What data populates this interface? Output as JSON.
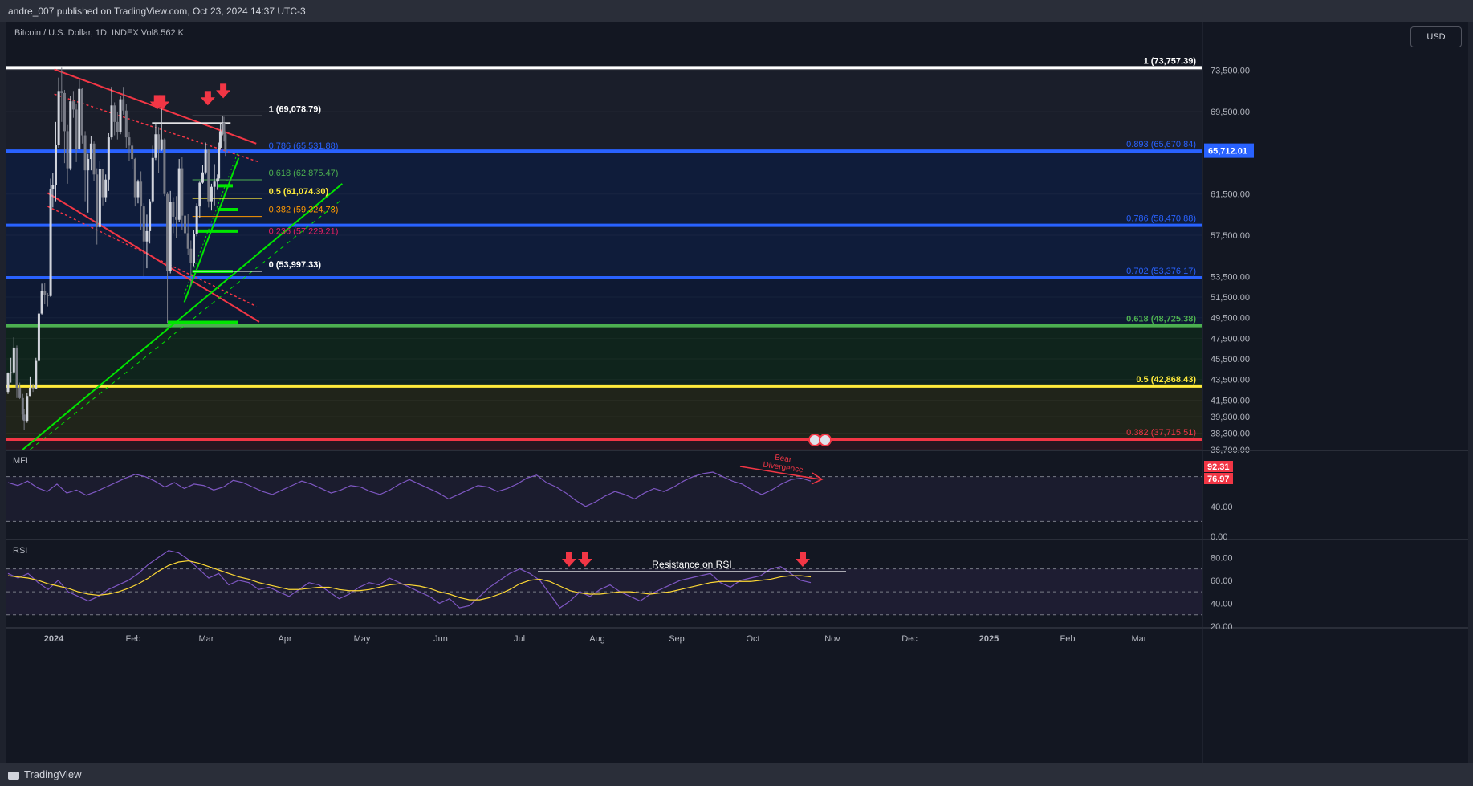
{
  "header": {
    "published": "andre_007 published on TradingView.com, Oct 23, 2024 14:37 UTC-3",
    "symbol": "Bitcoin / U.S. Dollar, 1D, INDEX",
    "vol_label": "Vol",
    "vol_value": "8.562 K",
    "currency": "USD"
  },
  "footer": {
    "brand": "TradingView"
  },
  "colors": {
    "up": "#d1d4dc",
    "down": "#787b86",
    "fib_blue": "#2962ff",
    "fib_green": "#4caf50",
    "fib_yellow": "#ffeb3b",
    "fib_red": "#f23645",
    "accent_green": "#00e600"
  },
  "chart_data": [
    {
      "type": "candlestick",
      "title": "Bitcoin / U.S. Dollar, 1D, INDEX",
      "ylim": [
        36700,
        75500
      ],
      "price_axis": [
        "73,500.00",
        "69,500.00",
        "61,500.00",
        "57,500.00",
        "53,500.00",
        "51,500.00",
        "49,500.00",
        "47,500.00",
        "45,500.00",
        "43,500.00",
        "41,500.00",
        "39,900.00",
        "38,300.00",
        "36,700.00"
      ],
      "last_price": "65,712.01",
      "x_ticks": [
        "2024",
        "Feb",
        "Mar",
        "Apr",
        "May",
        "Jun",
        "Jul",
        "Aug",
        "Sep",
        "Oct",
        "Nov",
        "Dec",
        "2025",
        "Feb",
        "Mar"
      ],
      "series": [
        {
          "name": "BTCUSD",
          "points": [
            [
              "2024-01-01",
              42300,
              44200,
              42100,
              44100
            ],
            [
              "2024-01-05",
              44100,
              45600,
              43200,
              44200
            ],
            [
              "2024-01-09",
              44200,
              47600,
              44000,
              46600
            ],
            [
              "2024-01-13",
              46600,
              46800,
              41700,
              42700
            ],
            [
              "2024-01-17",
              42700,
              43200,
              41600,
              41700
            ],
            [
              "2024-01-21",
              41700,
              42100,
              39600,
              40100
            ],
            [
              "2024-01-23",
              40100,
              40600,
              38600,
              39500
            ],
            [
              "2024-01-27",
              39500,
              42200,
              39300,
              41900
            ],
            [
              "2024-01-31",
              41900,
              43800,
              41900,
              42700
            ],
            [
              "2024-02-04",
              42700,
              43100,
              42300,
              42600
            ],
            [
              "2024-02-08",
              42600,
              45600,
              42600,
              45300
            ],
            [
              "2024-02-12",
              45300,
              50200,
              45200,
              49900
            ],
            [
              "2024-02-16",
              49900,
              52800,
              49800,
              52100
            ],
            [
              "2024-02-20",
              52100,
              52900,
              50800,
              51700
            ],
            [
              "2024-02-24",
              51700,
              51900,
              50600,
              51600
            ],
            [
              "2024-02-28",
              51600,
              63000,
              51500,
              62000
            ],
            [
              "2024-03-02",
              62000,
              63500,
              60200,
              62400
            ],
            [
              "2024-03-06",
              62400,
              68500,
              60800,
              66300
            ],
            [
              "2024-03-10",
              66300,
              72800,
              66000,
              71500
            ],
            [
              "2024-03-14",
              71500,
              73757,
              68500,
              71300
            ],
            [
              "2024-03-18",
              71300,
              71600,
              64500,
              67600
            ],
            [
              "2024-03-22",
              67600,
              68200,
              62500,
              64000
            ],
            [
              "2024-03-26",
              64000,
              71000,
              63800,
              70500
            ],
            [
              "2024-03-30",
              70500,
              71500,
              68900,
              69700
            ],
            [
              "2024-04-03",
              69700,
              70200,
              64600,
              65900
            ],
            [
              "2024-04-07",
              65900,
              72600,
              65800,
              71700
            ],
            [
              "2024-04-11",
              71700,
              71800,
              66400,
              67200
            ],
            [
              "2024-04-15",
              67200,
              67600,
              60800,
              63800
            ],
            [
              "2024-04-19",
              63800,
              65400,
              59700,
              64900
            ],
            [
              "2024-04-23",
              64900,
              67100,
              63800,
              66400
            ],
            [
              "2024-04-27",
              66400,
              66600,
              62800,
              63400
            ],
            [
              "2024-05-01",
              63400,
              64000,
              56600,
              58300
            ],
            [
              "2024-05-05",
              58300,
              64700,
              58200,
              63900
            ],
            [
              "2024-05-09",
              63900,
              63900,
              60400,
              61200
            ],
            [
              "2024-05-13",
              61200,
              63400,
              60700,
              62900
            ],
            [
              "2024-05-17",
              62900,
              67400,
              61800,
              67000
            ],
            [
              "2024-05-21",
              67000,
              71900,
              66800,
              70100
            ],
            [
              "2024-05-25",
              70100,
              70400,
              67200,
              68500
            ],
            [
              "2024-05-29",
              68500,
              69500,
              66800,
              67500
            ],
            [
              "2024-06-02",
              67500,
              71000,
              67300,
              70700
            ],
            [
              "2024-06-06",
              70700,
              71900,
              69200,
              69600
            ],
            [
              "2024-06-10",
              69600,
              70200,
              66000,
              67000
            ],
            [
              "2024-06-14",
              67000,
              67500,
              64700,
              66200
            ],
            [
              "2024-06-18",
              66200,
              66500,
              63900,
              64900
            ],
            [
              "2024-06-22",
              64900,
              65000,
              60300,
              61200
            ],
            [
              "2024-06-26",
              61200,
              62900,
              60600,
              62700
            ],
            [
              "2024-06-30",
              62700,
              63700,
              58000,
              60300
            ],
            [
              "2024-07-04",
              60300,
              60600,
              53500,
              56900
            ],
            [
              "2024-07-08",
              56900,
              59500,
              54300,
              57900
            ],
            [
              "2024-07-12",
              57900,
              61000,
              56700,
              60800
            ],
            [
              "2024-07-16",
              60800,
              66200,
              60600,
              65000
            ],
            [
              "2024-07-20",
              65000,
              68400,
              64800,
              67300
            ],
            [
              "2024-07-24",
              67300,
              68000,
              63500,
              65800
            ],
            [
              "2024-07-28",
              65800,
              69900,
              65700,
              66800
            ],
            [
              "2024-08-01",
              66800,
              66900,
              61300,
              61500
            ],
            [
              "2024-08-05",
              61500,
              61700,
              49000,
              54000
            ],
            [
              "2024-08-09",
              54000,
              61800,
              53800,
              60700
            ],
            [
              "2024-08-13",
              60700,
              61200,
              57700,
              59300
            ],
            [
              "2024-08-17",
              59300,
              61300,
              57200,
              59000
            ],
            [
              "2024-08-21",
              59000,
              64900,
              58800,
              64000
            ],
            [
              "2024-08-25",
              64000,
              65100,
              58000,
              59400
            ],
            [
              "2024-08-29",
              59400,
              61000,
              57200,
              57700
            ],
            [
              "2024-09-02",
              57700,
              59600,
              55600,
              56200
            ],
            [
              "2024-09-06",
              56200,
              57000,
              52600,
              54800
            ],
            [
              "2024-09-10",
              54800,
              58000,
              54500,
              57600
            ],
            [
              "2024-09-14",
              57600,
              60600,
              57400,
              60300
            ],
            [
              "2024-09-18",
              60300,
              62700,
              59200,
              62600
            ],
            [
              "2024-09-22",
              62600,
              64300,
              62500,
              63600
            ],
            [
              "2024-09-26",
              63600,
              66500,
              63400,
              65800
            ],
            [
              "2024-09-30",
              65800,
              65900,
              60200,
              60800
            ],
            [
              "2024-10-04",
              60800,
              62500,
              59900,
              62200
            ],
            [
              "2024-10-08",
              62200,
              64400,
              60400,
              62700
            ],
            [
              "2024-10-12",
              62700,
              63400,
              61900,
              63000
            ],
            [
              "2024-10-14",
              63000,
              66500,
              62800,
              66000
            ],
            [
              "2024-10-16",
              66000,
              68400,
              65800,
              67600
            ],
            [
              "2024-10-19",
              67600,
              69078,
              67200,
              68400
            ],
            [
              "2024-10-21",
              68400,
              69000,
              66600,
              67300
            ],
            [
              "2024-10-23",
              67300,
              67500,
              65200,
              65712
            ]
          ]
        }
      ],
      "fib_retracement_1": [
        {
          "label": "1 (73,757.39)",
          "color": "#ffffff"
        },
        {
          "label": "0.893 (65,670.84)",
          "color": "#2962ff"
        },
        {
          "label": "0.786 (58,470.88)",
          "color": "#2962ff"
        },
        {
          "label": "0.702 (53,376.17)",
          "color": "#2962ff"
        },
        {
          "label": "0.618 (48,725.38)",
          "color": "#4caf50"
        },
        {
          "label": "0.5 (42,868.43)",
          "color": "#ffeb3b"
        },
        {
          "label": "0.382 (37,715.51)",
          "color": "#f23645"
        }
      ],
      "fib_retracement_2": [
        {
          "label": "1 (69,078.79)",
          "color": "#ffffff"
        },
        {
          "label": "0.786 (65,531.88)",
          "color": "#2962ff"
        },
        {
          "label": "0.618 (62,875.47)",
          "color": "#4caf50"
        },
        {
          "label": "0.5 (61,074.30)",
          "color": "#ffeb3b"
        },
        {
          "label": "0.382 (59,324.73)",
          "color": "#ff9800"
        },
        {
          "label": "0.236 (57,229.21)",
          "color": "#e91e63"
        },
        {
          "label": "0 (53,997.33)",
          "color": "#ffffff"
        }
      ]
    },
    {
      "type": "line",
      "title": "MFI",
      "ylim": [
        0,
        100
      ],
      "axis_ticks": [
        "40.00",
        "0.00"
      ],
      "last_values": [
        "92.31",
        "76.97"
      ],
      "annotation": [
        "Bear",
        "Divergence"
      ],
      "series": [
        {
          "name": "MFI",
          "values": [
            72,
            68,
            74,
            65,
            60,
            70,
            58,
            62,
            55,
            60,
            66,
            72,
            78,
            83,
            80,
            74,
            66,
            72,
            64,
            70,
            68,
            62,
            66,
            75,
            72,
            66,
            60,
            56,
            62,
            68,
            74,
            70,
            64,
            58,
            62,
            68,
            66,
            60,
            56,
            62,
            70,
            76,
            70,
            64,
            58,
            50,
            56,
            62,
            68,
            66,
            60,
            64,
            70,
            78,
            82,
            72,
            66,
            58,
            48,
            40,
            46,
            54,
            60,
            56,
            50,
            58,
            64,
            60,
            66,
            74,
            80,
            84,
            86,
            80,
            74,
            70,
            62,
            56,
            62,
            70,
            76,
            78,
            74
          ]
        }
      ]
    },
    {
      "type": "line",
      "title": "RSI",
      "ylim": [
        20,
        90
      ],
      "axis_ticks": [
        "80.00",
        "60.00",
        "40.00",
        "20.00"
      ],
      "annotation": "Resistance on RSI",
      "series": [
        {
          "name": "RSI",
          "values": [
            66,
            62,
            66,
            58,
            52,
            60,
            50,
            46,
            42,
            46,
            52,
            56,
            60,
            66,
            74,
            80,
            86,
            84,
            78,
            70,
            62,
            66,
            56,
            60,
            58,
            52,
            54,
            50,
            46,
            52,
            58,
            56,
            50,
            44,
            48,
            54,
            58,
            56,
            62,
            58,
            54,
            50,
            46,
            40,
            44,
            36,
            38,
            46,
            54,
            60,
            66,
            70,
            66,
            60,
            48,
            36,
            42,
            50,
            46,
            52,
            56,
            50,
            46,
            42,
            48,
            52,
            56,
            60,
            62,
            64,
            66,
            58,
            54,
            60,
            62,
            64,
            70,
            72,
            66,
            60,
            58
          ]
        },
        {
          "name": "RSI MA",
          "values": [
            64,
            63,
            62,
            60,
            57,
            55,
            53,
            50,
            48,
            47,
            48,
            50,
            53,
            57,
            62,
            68,
            73,
            76,
            77,
            75,
            72,
            69,
            66,
            63,
            61,
            58,
            56,
            54,
            52,
            52,
            53,
            54,
            54,
            52,
            51,
            51,
            52,
            54,
            56,
            57,
            56,
            55,
            53,
            50,
            48,
            45,
            43,
            43,
            45,
            48,
            52,
            57,
            60,
            61,
            59,
            55,
            51,
            49,
            48,
            48,
            49,
            50,
            50,
            49,
            48,
            49,
            50,
            52,
            54,
            56,
            58,
            59,
            59,
            59,
            59,
            60,
            61,
            63,
            64,
            64,
            63
          ]
        }
      ]
    }
  ]
}
